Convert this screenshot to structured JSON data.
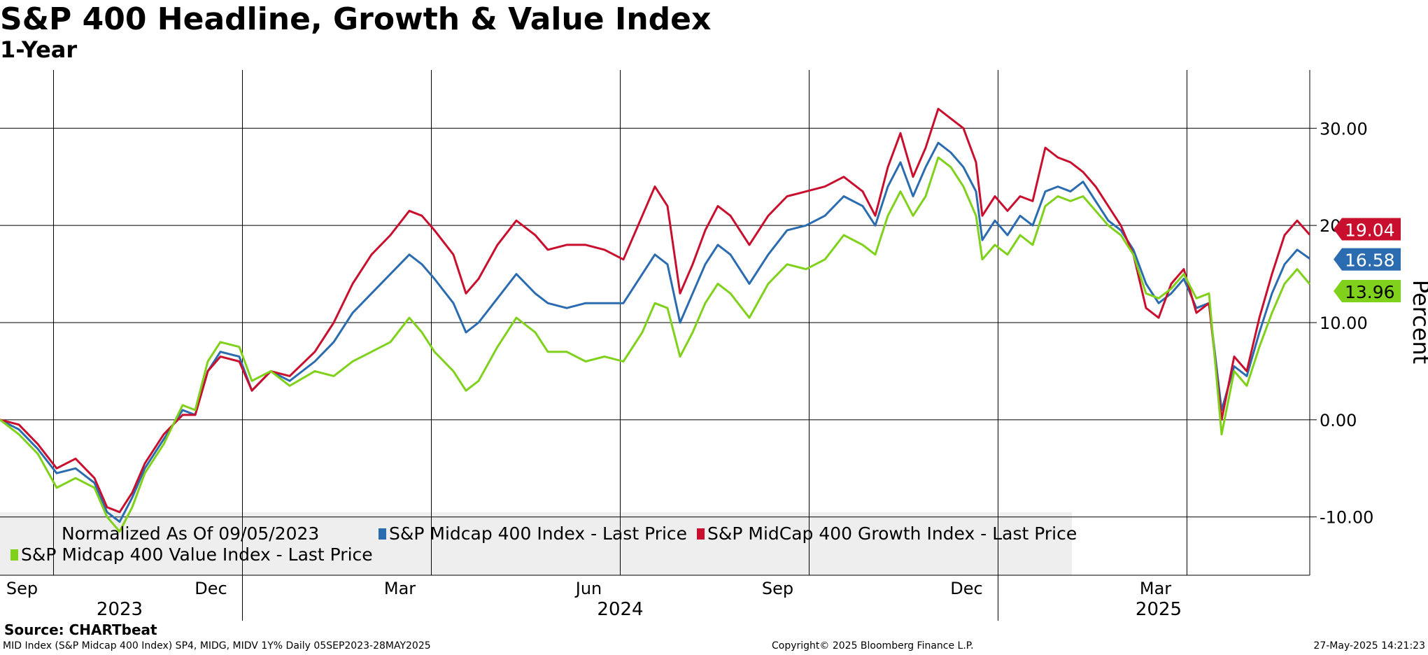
{
  "header": {
    "title": "S&P 400 Headline, Growth & Value Index",
    "subtitle": "1-Year"
  },
  "footer": {
    "source": "Source: CHARTbeat",
    "description": "MID Index (S&P Midcap 400 Index) SP4, MIDG, MIDV 1Y%  Daily 05SEP2023-28MAY2025",
    "copyright": "Copyright© 2025 Bloomberg Finance L.P.",
    "timestamp": "27-May-2025 14:21:23"
  },
  "chart_data": {
    "type": "line",
    "title": "S&P 400 Headline, Growth & Value Index",
    "subtitle": "1-Year",
    "ylabel": "Percent",
    "xlabel": "",
    "ylim": [
      -16,
      36
    ],
    "yticks": [
      -10,
      0,
      10,
      20,
      30
    ],
    "ytick_labels": [
      "-10.00",
      "0.00",
      "10.00",
      "20.00",
      "30.00"
    ],
    "x_range": [
      0,
      20.8
    ],
    "x_unit": "months since 09/05/2023",
    "month_ticks": [
      {
        "x": 0.35,
        "label": "Sep"
      },
      {
        "x": 3.35,
        "label": "Dec"
      },
      {
        "x": 6.35,
        "label": "Mar"
      },
      {
        "x": 9.35,
        "label": "Jun"
      },
      {
        "x": 12.35,
        "label": "Sep"
      },
      {
        "x": 15.35,
        "label": "Dec"
      },
      {
        "x": 18.35,
        "label": "Mar"
      }
    ],
    "vertical_gridlines": [
      0.85,
      3.85,
      6.85,
      9.85,
      12.85,
      15.85,
      18.85
    ],
    "year_separators": [
      3.85,
      15.85
    ],
    "year_labels": [
      {
        "x": 1.9,
        "label": "2023"
      },
      {
        "x": 9.85,
        "label": "2024"
      },
      {
        "x": 18.4,
        "label": "2025"
      }
    ],
    "legend": {
      "position": "bottom-left",
      "note": "Normalized As Of 09/05/2023",
      "entries": [
        {
          "name": "S&P Midcap 400 Index - Last Price",
          "color": "#2b6cb0"
        },
        {
          "name": "S&P MidCap 400 Growth Index - Last Price",
          "color": "#c8102e"
        },
        {
          "name": "S&P Midcap 400 Value Index - Last Price",
          "color": "#7fd11c"
        }
      ]
    },
    "last_value_labels": [
      {
        "series": "S&P MidCap 400 Growth Index - Last Price",
        "value": 19.04,
        "label": "19.04"
      },
      {
        "series": "S&P Midcap 400 Index - Last Price",
        "value": 16.58,
        "label": "16.58"
      },
      {
        "series": "S&P Midcap 400 Value Index - Last Price",
        "value": 13.96,
        "label": "13.96"
      }
    ],
    "series": [
      {
        "name": "S&P Midcap 400 Index - Last Price",
        "color": "#2b6cb0",
        "points": [
          [
            0,
            0
          ],
          [
            0.3,
            -1
          ],
          [
            0.6,
            -3
          ],
          [
            0.9,
            -5.5
          ],
          [
            1.2,
            -5
          ],
          [
            1.5,
            -6.5
          ],
          [
            1.7,
            -9.5
          ],
          [
            1.9,
            -10.5
          ],
          [
            2.1,
            -8
          ],
          [
            2.3,
            -5
          ],
          [
            2.6,
            -2
          ],
          [
            2.9,
            1
          ],
          [
            3.1,
            0.5
          ],
          [
            3.3,
            5
          ],
          [
            3.5,
            7
          ],
          [
            3.8,
            6.5
          ],
          [
            4.0,
            3
          ],
          [
            4.3,
            5
          ],
          [
            4.6,
            4
          ],
          [
            5.0,
            6
          ],
          [
            5.3,
            8
          ],
          [
            5.6,
            11
          ],
          [
            5.9,
            13
          ],
          [
            6.2,
            15
          ],
          [
            6.5,
            17
          ],
          [
            6.7,
            16
          ],
          [
            6.9,
            14.5
          ],
          [
            7.2,
            12
          ],
          [
            7.4,
            9
          ],
          [
            7.6,
            10
          ],
          [
            7.9,
            12.5
          ],
          [
            8.2,
            15
          ],
          [
            8.5,
            13
          ],
          [
            8.7,
            12
          ],
          [
            9.0,
            11.5
          ],
          [
            9.3,
            12
          ],
          [
            9.6,
            12
          ],
          [
            9.9,
            12
          ],
          [
            10.2,
            15
          ],
          [
            10.4,
            17
          ],
          [
            10.6,
            16
          ],
          [
            10.8,
            10
          ],
          [
            11.0,
            13
          ],
          [
            11.2,
            16
          ],
          [
            11.4,
            18
          ],
          [
            11.6,
            17
          ],
          [
            11.9,
            14
          ],
          [
            12.2,
            17
          ],
          [
            12.5,
            19.5
          ],
          [
            12.8,
            20
          ],
          [
            13.1,
            21
          ],
          [
            13.4,
            23
          ],
          [
            13.7,
            22
          ],
          [
            13.9,
            20
          ],
          [
            14.1,
            24
          ],
          [
            14.3,
            26.5
          ],
          [
            14.5,
            23
          ],
          [
            14.7,
            26
          ],
          [
            14.9,
            28.5
          ],
          [
            15.1,
            27.5
          ],
          [
            15.3,
            26
          ],
          [
            15.5,
            23.5
          ],
          [
            15.6,
            18.5
          ],
          [
            15.8,
            20.5
          ],
          [
            16.0,
            19
          ],
          [
            16.2,
            21
          ],
          [
            16.4,
            20
          ],
          [
            16.6,
            23.5
          ],
          [
            16.8,
            24
          ],
          [
            17.0,
            23.5
          ],
          [
            17.2,
            24.5
          ],
          [
            17.4,
            22.5
          ],
          [
            17.6,
            20.5
          ],
          [
            17.8,
            19.5
          ],
          [
            18.0,
            17.5
          ],
          [
            18.2,
            14
          ],
          [
            18.4,
            12
          ],
          [
            18.6,
            13
          ],
          [
            18.8,
            14.5
          ],
          [
            19.0,
            11.5
          ],
          [
            19.2,
            12
          ],
          [
            19.4,
            1
          ],
          [
            19.6,
            5.5
          ],
          [
            19.8,
            4.5
          ],
          [
            20.0,
            9
          ],
          [
            20.2,
            13
          ],
          [
            20.4,
            16
          ],
          [
            20.6,
            17.5
          ],
          [
            20.8,
            16.58
          ]
        ]
      },
      {
        "name": "S&P MidCap 400 Growth Index - Last Price",
        "color": "#c8102e",
        "points": [
          [
            0,
            0
          ],
          [
            0.3,
            -0.5
          ],
          [
            0.6,
            -2.5
          ],
          [
            0.9,
            -5
          ],
          [
            1.2,
            -4
          ],
          [
            1.5,
            -6
          ],
          [
            1.7,
            -9
          ],
          [
            1.9,
            -9.5
          ],
          [
            2.1,
            -7.5
          ],
          [
            2.3,
            -4.5
          ],
          [
            2.6,
            -1.5
          ],
          [
            2.9,
            0.5
          ],
          [
            3.1,
            0.5
          ],
          [
            3.3,
            5
          ],
          [
            3.5,
            6.5
          ],
          [
            3.8,
            6
          ],
          [
            4.0,
            3
          ],
          [
            4.3,
            5
          ],
          [
            4.6,
            4.5
          ],
          [
            5.0,
            7
          ],
          [
            5.3,
            10
          ],
          [
            5.6,
            14
          ],
          [
            5.9,
            17
          ],
          [
            6.2,
            19
          ],
          [
            6.5,
            21.5
          ],
          [
            6.7,
            21
          ],
          [
            6.9,
            19.5
          ],
          [
            7.2,
            17
          ],
          [
            7.4,
            13
          ],
          [
            7.6,
            14.5
          ],
          [
            7.9,
            18
          ],
          [
            8.2,
            20.5
          ],
          [
            8.5,
            19
          ],
          [
            8.7,
            17.5
          ],
          [
            9.0,
            18
          ],
          [
            9.3,
            18
          ],
          [
            9.6,
            17.5
          ],
          [
            9.9,
            16.5
          ],
          [
            10.2,
            21
          ],
          [
            10.4,
            24
          ],
          [
            10.6,
            22
          ],
          [
            10.8,
            13
          ],
          [
            11.0,
            16
          ],
          [
            11.2,
            19.5
          ],
          [
            11.4,
            22
          ],
          [
            11.6,
            21
          ],
          [
            11.9,
            18
          ],
          [
            12.2,
            21
          ],
          [
            12.5,
            23
          ],
          [
            12.8,
            23.5
          ],
          [
            13.1,
            24
          ],
          [
            13.4,
            25
          ],
          [
            13.7,
            23.5
          ],
          [
            13.9,
            21
          ],
          [
            14.1,
            26
          ],
          [
            14.3,
            29.5
          ],
          [
            14.5,
            25
          ],
          [
            14.7,
            28
          ],
          [
            14.9,
            32
          ],
          [
            15.1,
            31
          ],
          [
            15.3,
            30
          ],
          [
            15.5,
            26.5
          ],
          [
            15.6,
            21
          ],
          [
            15.8,
            23
          ],
          [
            16.0,
            21.5
          ],
          [
            16.2,
            23
          ],
          [
            16.4,
            22.5
          ],
          [
            16.6,
            28
          ],
          [
            16.8,
            27
          ],
          [
            17.0,
            26.5
          ],
          [
            17.2,
            25.5
          ],
          [
            17.4,
            24
          ],
          [
            17.6,
            22
          ],
          [
            17.8,
            20
          ],
          [
            18.0,
            17
          ],
          [
            18.2,
            11.5
          ],
          [
            18.4,
            10.5
          ],
          [
            18.6,
            14
          ],
          [
            18.8,
            15.5
          ],
          [
            19.0,
            11
          ],
          [
            19.2,
            12
          ],
          [
            19.4,
            0
          ],
          [
            19.6,
            6.5
          ],
          [
            19.8,
            5
          ],
          [
            20.0,
            10.5
          ],
          [
            20.2,
            15
          ],
          [
            20.4,
            19
          ],
          [
            20.6,
            20.5
          ],
          [
            20.8,
            19.04
          ]
        ]
      },
      {
        "name": "S&P Midcap 400 Value Index - Last Price",
        "color": "#7fd11c",
        "points": [
          [
            0,
            0
          ],
          [
            0.3,
            -1.5
          ],
          [
            0.6,
            -3.5
          ],
          [
            0.9,
            -7
          ],
          [
            1.2,
            -6
          ],
          [
            1.5,
            -7
          ],
          [
            1.7,
            -10
          ],
          [
            1.9,
            -11.5
          ],
          [
            2.1,
            -9
          ],
          [
            2.3,
            -5.5
          ],
          [
            2.6,
            -2.5
          ],
          [
            2.9,
            1.5
          ],
          [
            3.1,
            1
          ],
          [
            3.3,
            6
          ],
          [
            3.5,
            8
          ],
          [
            3.8,
            7.5
          ],
          [
            4.0,
            4
          ],
          [
            4.3,
            5
          ],
          [
            4.6,
            3.5
          ],
          [
            5.0,
            5
          ],
          [
            5.3,
            4.5
          ],
          [
            5.6,
            6
          ],
          [
            5.9,
            7
          ],
          [
            6.2,
            8
          ],
          [
            6.5,
            10.5
          ],
          [
            6.7,
            9
          ],
          [
            6.9,
            7
          ],
          [
            7.2,
            5
          ],
          [
            7.4,
            3
          ],
          [
            7.6,
            4
          ],
          [
            7.9,
            7.5
          ],
          [
            8.2,
            10.5
          ],
          [
            8.5,
            9
          ],
          [
            8.7,
            7
          ],
          [
            9.0,
            7
          ],
          [
            9.3,
            6
          ],
          [
            9.6,
            6.5
          ],
          [
            9.9,
            6
          ],
          [
            10.2,
            9
          ],
          [
            10.4,
            12
          ],
          [
            10.6,
            11.5
          ],
          [
            10.8,
            6.5
          ],
          [
            11.0,
            9
          ],
          [
            11.2,
            12
          ],
          [
            11.4,
            14
          ],
          [
            11.6,
            13
          ],
          [
            11.9,
            10.5
          ],
          [
            12.2,
            14
          ],
          [
            12.5,
            16
          ],
          [
            12.8,
            15.5
          ],
          [
            13.1,
            16.5
          ],
          [
            13.4,
            19
          ],
          [
            13.7,
            18
          ],
          [
            13.9,
            17
          ],
          [
            14.1,
            21
          ],
          [
            14.3,
            23.5
          ],
          [
            14.5,
            21
          ],
          [
            14.7,
            23
          ],
          [
            14.9,
            27
          ],
          [
            15.1,
            26
          ],
          [
            15.3,
            24
          ],
          [
            15.5,
            21
          ],
          [
            15.6,
            16.5
          ],
          [
            15.8,
            18
          ],
          [
            16.0,
            17
          ],
          [
            16.2,
            19
          ],
          [
            16.4,
            18
          ],
          [
            16.6,
            22
          ],
          [
            16.8,
            23
          ],
          [
            17.0,
            22.5
          ],
          [
            17.2,
            23
          ],
          [
            17.4,
            21.5
          ],
          [
            17.6,
            20
          ],
          [
            17.8,
            19
          ],
          [
            18.0,
            17
          ],
          [
            18.2,
            13
          ],
          [
            18.4,
            12.5
          ],
          [
            18.6,
            13.5
          ],
          [
            18.8,
            15
          ],
          [
            19.0,
            12.5
          ],
          [
            19.2,
            13
          ],
          [
            19.4,
            -1.5
          ],
          [
            19.6,
            5
          ],
          [
            19.8,
            3.5
          ],
          [
            20.0,
            7.5
          ],
          [
            20.2,
            11
          ],
          [
            20.4,
            14
          ],
          [
            20.6,
            15.5
          ],
          [
            20.8,
            13.96
          ]
        ]
      }
    ]
  }
}
